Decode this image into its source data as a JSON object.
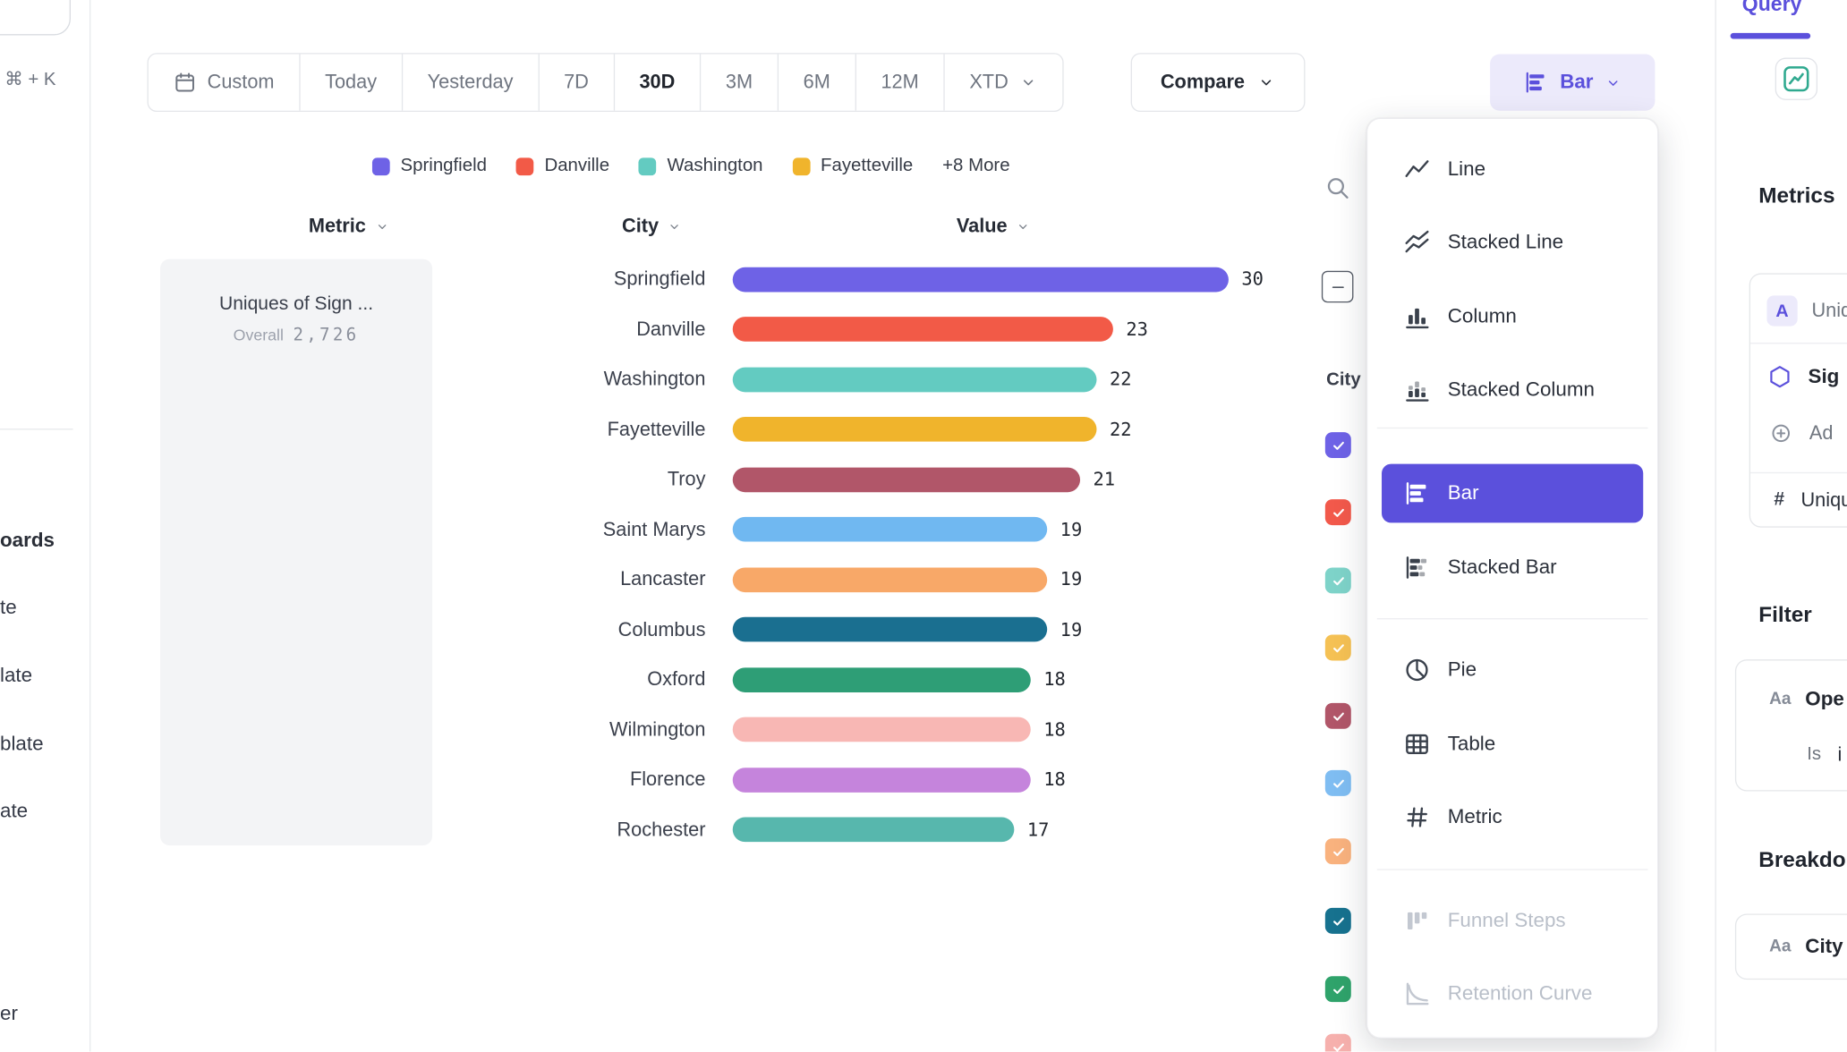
{
  "colors": {
    "accent": "#5B50DC",
    "accent_light_bg": "#ECEAFB"
  },
  "sidebar": {
    "shortcut": "⌘ + K",
    "items": [
      "oards",
      "te",
      "late",
      "blate",
      "ate",
      "er"
    ]
  },
  "toolbar": {
    "date_ranges": [
      {
        "label": "Custom",
        "icon": "calendar"
      },
      {
        "label": "Today"
      },
      {
        "label": "Yesterday"
      },
      {
        "label": "7D"
      },
      {
        "label": "30D"
      },
      {
        "label": "3M"
      },
      {
        "label": "6M"
      },
      {
        "label": "12M"
      },
      {
        "label": "XTD",
        "chevron": true
      }
    ],
    "selected_range": "30D",
    "compare": {
      "label": "Compare"
    },
    "chart_type_button": {
      "label": "Bar",
      "icon": "bar"
    }
  },
  "legend": {
    "items": [
      {
        "label": "Springfield",
        "color": "#6E62E6"
      },
      {
        "label": "Danville",
        "color": "#F25A47"
      },
      {
        "label": "Washington",
        "color": "#63CBC1"
      },
      {
        "label": "Fayetteville",
        "color": "#F0B42C"
      }
    ],
    "more_label": "+8 More"
  },
  "table": {
    "headers": [
      "Metric",
      "City",
      "Value"
    ]
  },
  "metric_card": {
    "title": "Uniques of Sign ...",
    "overall_label": "Overall",
    "overall_value": "2,726"
  },
  "chart_data": {
    "type": "bar",
    "orientation": "horizontal",
    "title": "Uniques of Sign ...",
    "categories": [
      "Springfield",
      "Danville",
      "Washington",
      "Fayetteville",
      "Troy",
      "Saint Marys",
      "Lancaster",
      "Columbus",
      "Oxford",
      "Wilmington",
      "Florence",
      "Rochester"
    ],
    "values": [
      30,
      23,
      22,
      22,
      21,
      19,
      19,
      19,
      18,
      18,
      18,
      17
    ],
    "colors": [
      "#6E62E6",
      "#F25A47",
      "#63CBC1",
      "#F0B42C",
      "#B15669",
      "#70B8F1",
      "#F8A868",
      "#1A6F90",
      "#2E9E76",
      "#F8B7B4",
      "#C584DC",
      "#57B7AD"
    ],
    "xlim": [
      0,
      30
    ],
    "overall": "2,726",
    "legend_position": "top",
    "grid": false
  },
  "series_panel": {
    "column_label": "City",
    "checkbox_colors": [
      "#6E62E6",
      "#F2594B",
      "#7ED3C9",
      "#F5C154",
      "#B15669",
      "#7FBDF2",
      "#F9B27E",
      "#17728F",
      "#2FA36B",
      "#F6B0AD"
    ]
  },
  "chart_menu": {
    "items": [
      {
        "label": "Line",
        "icon": "line"
      },
      {
        "label": "Stacked Line",
        "icon": "stacked-line"
      },
      {
        "label": "Column",
        "icon": "column"
      },
      {
        "label": "Stacked Column",
        "icon": "stacked-column"
      },
      {
        "label": "Bar",
        "icon": "bar"
      },
      {
        "label": "Stacked Bar",
        "icon": "stacked-bar"
      },
      {
        "label": "Pie",
        "icon": "pie"
      },
      {
        "label": "Table",
        "icon": "table"
      },
      {
        "label": "Metric",
        "icon": "hash"
      },
      {
        "label": "Funnel Steps",
        "icon": "funnel",
        "disabled": true
      },
      {
        "label": "Retention Curve",
        "icon": "retention",
        "disabled": true
      }
    ],
    "selected": "Bar"
  },
  "query_panel": {
    "tab_label": "Query",
    "metrics_heading": "Metrics",
    "event_badge": "A",
    "event_label": "Uniq",
    "event_name": "Sig",
    "add_label": "Ad",
    "aggregate_symbol": "#",
    "aggregate_label": "Uniqu",
    "filter_heading": "Filter",
    "type_icon_text": "Aa",
    "filter_property": "Ope",
    "filter_operator": "Is",
    "filter_value": "i",
    "breakdown_heading": "Breakdo",
    "breakdown_property": "City"
  }
}
